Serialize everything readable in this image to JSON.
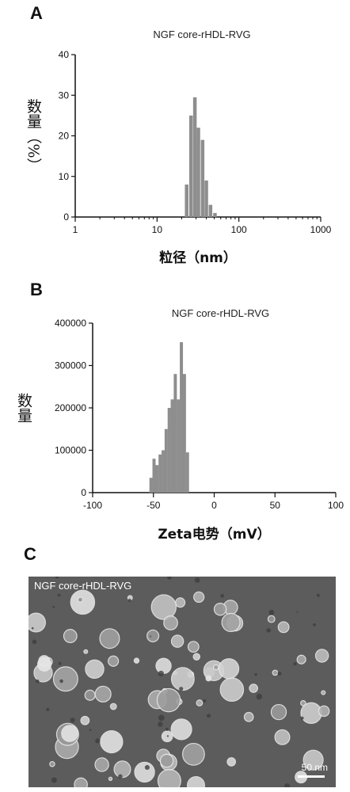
{
  "panels": {
    "a_letter": "A",
    "b_letter": "B",
    "c_letter": "C"
  },
  "chart_data": [
    {
      "type": "bar",
      "title": "NGF core-rHDL-RVG",
      "xlabel": "粒径（nm）",
      "ylabel": "数量（%）",
      "xscale": "log",
      "xlim": [
        1,
        1000
      ],
      "ylim": [
        0,
        40
      ],
      "xticks": [
        "1",
        "10",
        "100",
        "1000"
      ],
      "yticks": [
        "0",
        "10",
        "20",
        "30",
        "40"
      ],
      "x": [
        23,
        26,
        29,
        32,
        36,
        40,
        45,
        51
      ],
      "values": [
        8,
        25,
        29.5,
        22,
        19,
        9,
        3,
        1
      ],
      "color": "#8e8e8e",
      "grid": false
    },
    {
      "type": "bar",
      "title": "NGF core-rHDL-RVG",
      "xlabel": "Zeta电势（mV）",
      "ylabel": "数量",
      "xlim": [
        -100,
        100
      ],
      "ylim": [
        0,
        400000
      ],
      "xticks": [
        "-100",
        "-50",
        "0",
        "50",
        "100"
      ],
      "yticks": [
        "0",
        "100000",
        "200000",
        "300000",
        "400000"
      ],
      "x": [
        -52,
        -49.5,
        -47,
        -44.5,
        -42,
        -39.5,
        -37,
        -34.5,
        -32,
        -29.5,
        -27,
        -24.5,
        -22
      ],
      "values": [
        35000,
        80000,
        65000,
        90000,
        100000,
        150000,
        200000,
        220000,
        280000,
        220000,
        355000,
        280000,
        95000
      ],
      "color": "#8e8e8e",
      "grid": false
    }
  ],
  "tem": {
    "caption": "NGF core-rHDL-RVG",
    "scale_label": "50 nm",
    "background": "#5b5b5b"
  }
}
